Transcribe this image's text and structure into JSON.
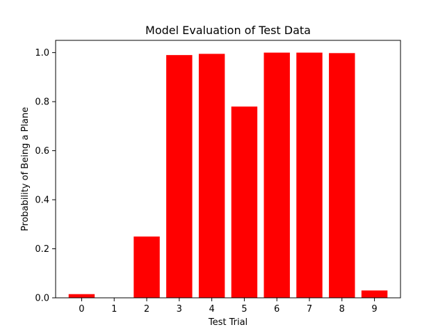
{
  "chart_data": {
    "type": "bar",
    "title": "Model Evaluation of Test Data",
    "xlabel": "Test Trial",
    "ylabel": "Probability of Being a Plane",
    "categories": [
      "0",
      "1",
      "2",
      "3",
      "4",
      "5",
      "6",
      "7",
      "8",
      "9"
    ],
    "values": [
      0.015,
      0.001,
      0.25,
      0.99,
      0.995,
      0.78,
      1.0,
      1.0,
      0.998,
      0.03
    ],
    "ylim": [
      0,
      1.05
    ],
    "yticks": [
      "0.0",
      "0.2",
      "0.4",
      "0.6",
      "0.8",
      "1.0"
    ],
    "bar_color": "#ff0000",
    "grid": false
  }
}
